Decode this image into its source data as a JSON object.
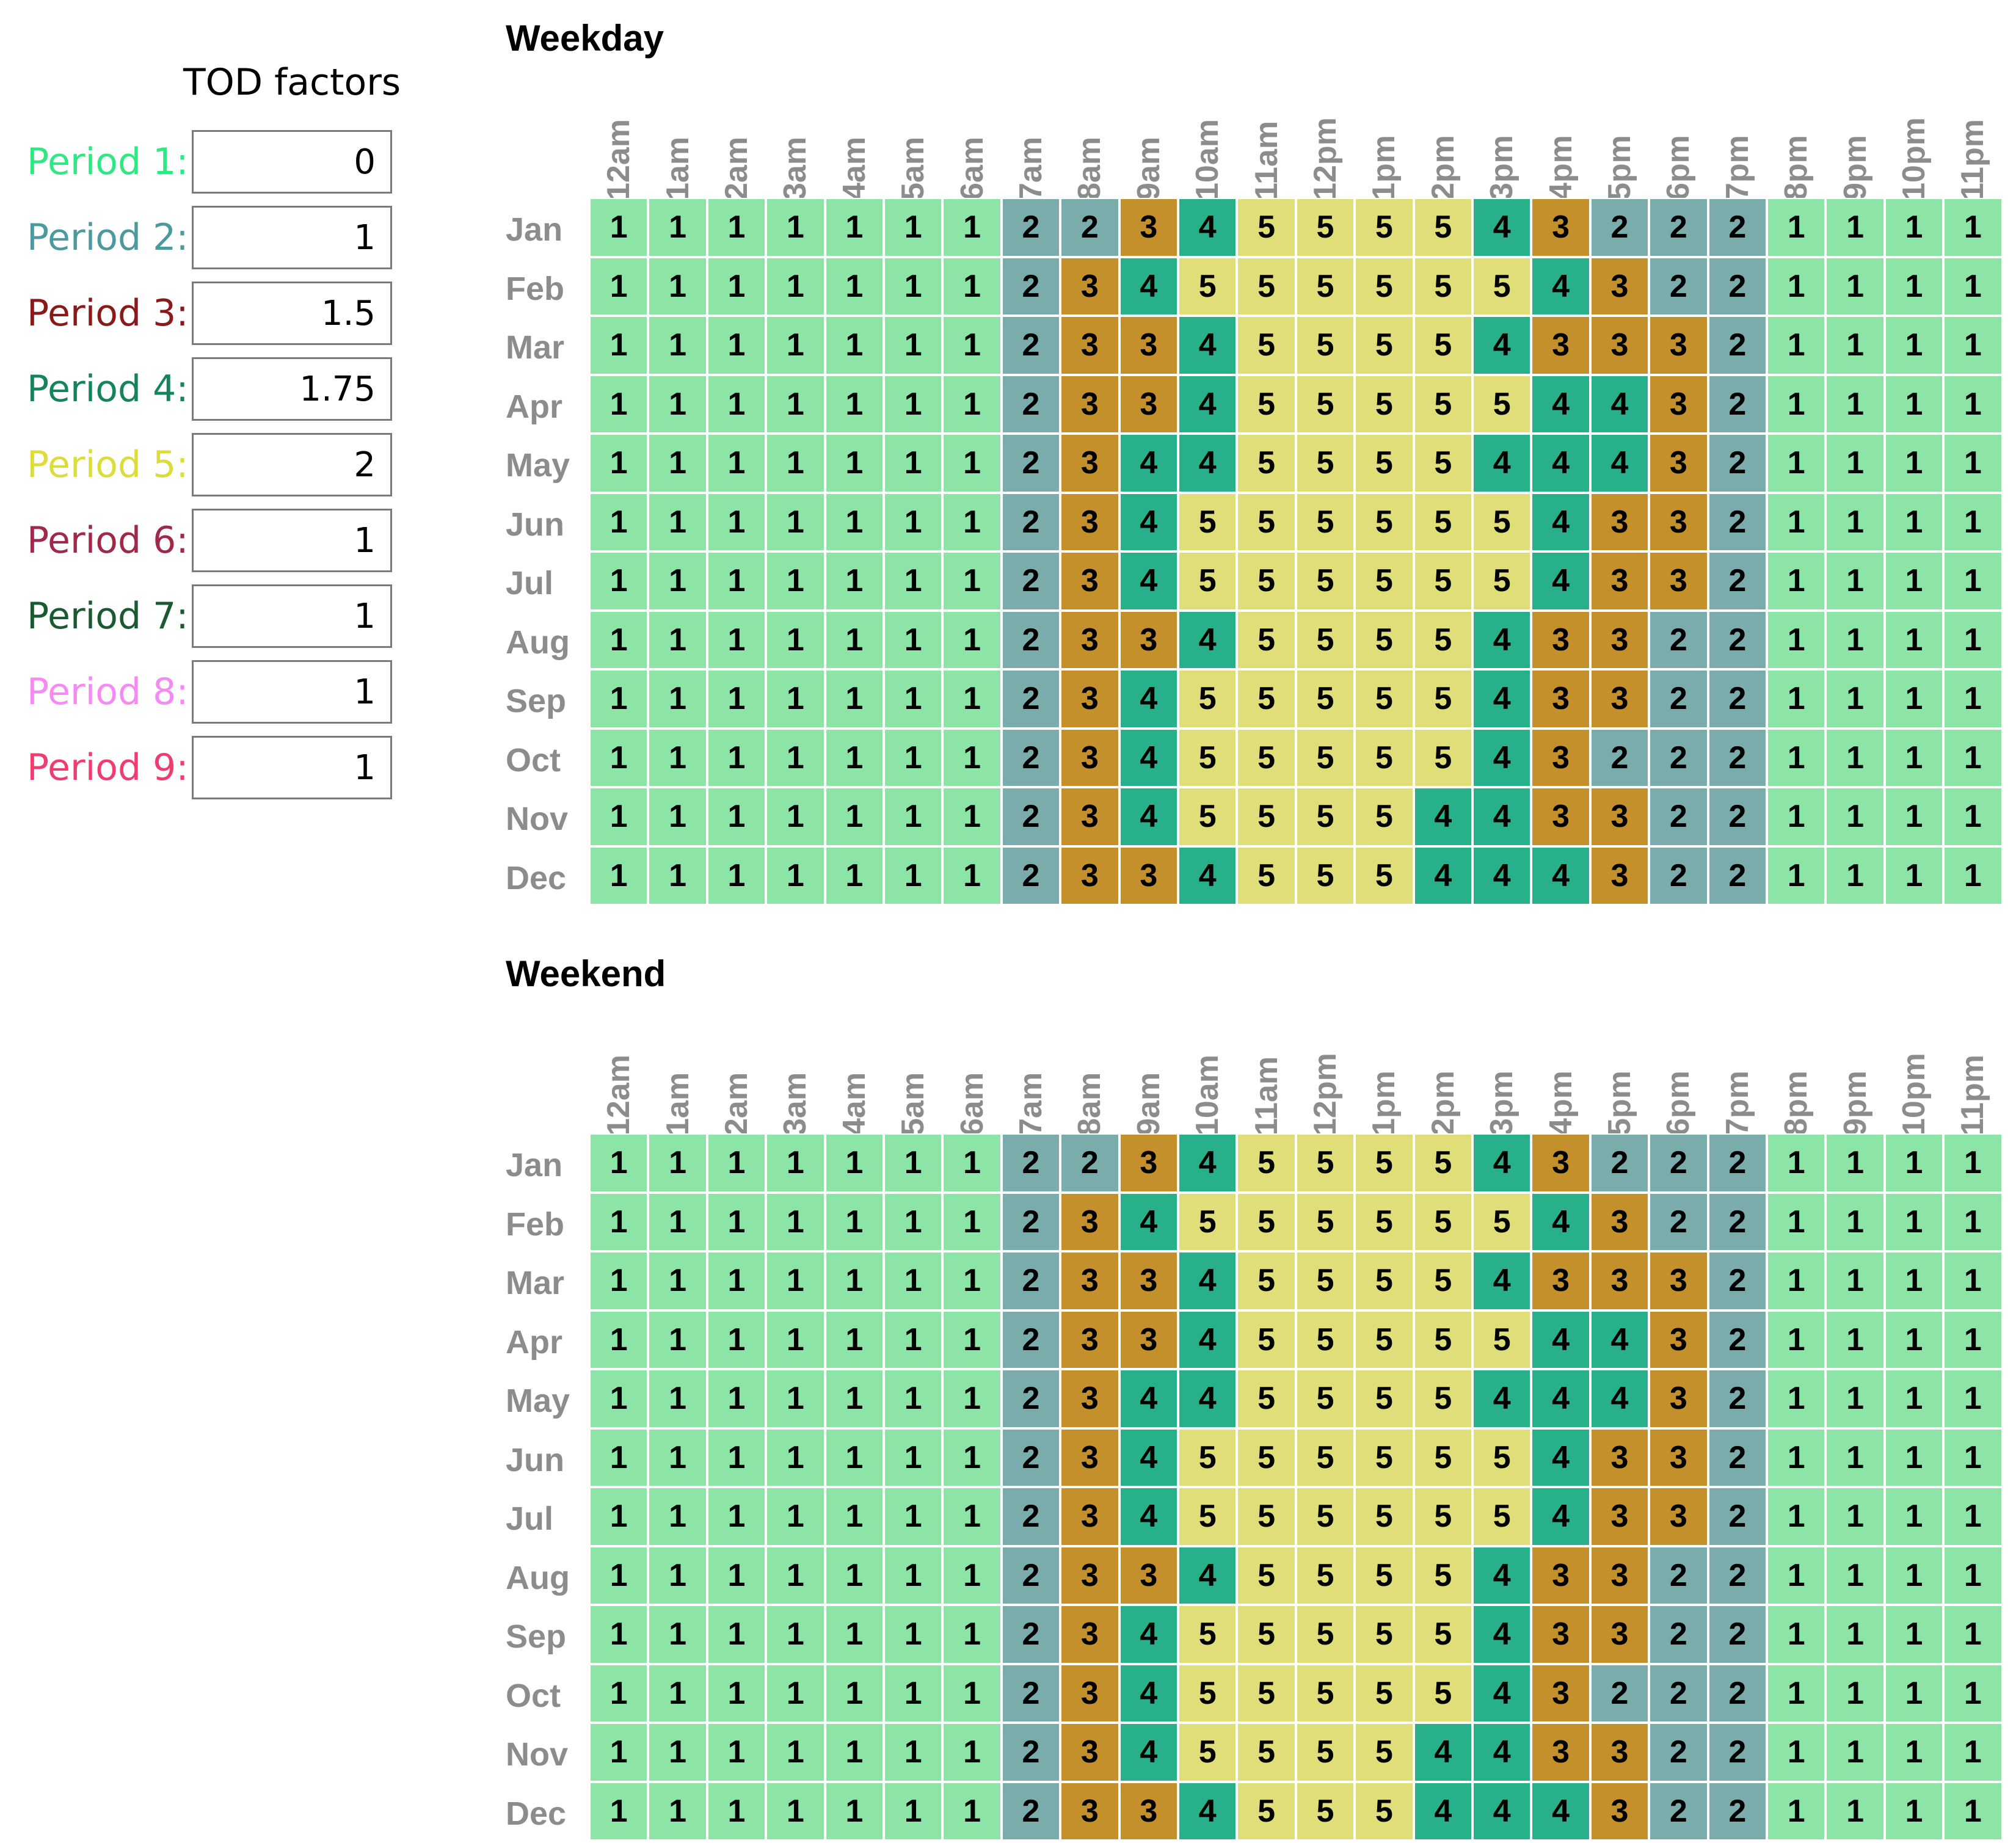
{
  "tod_panel": {
    "title": "TOD factors",
    "periods": [
      {
        "label": "Period 1:",
        "value": "0",
        "color": "#2ee882"
      },
      {
        "label": "Period 2:",
        "value": "1",
        "color": "#4c9aa0"
      },
      {
        "label": "Period 3:",
        "value": "1.5",
        "color": "#8a1a1a"
      },
      {
        "label": "Period 4:",
        "value": "1.75",
        "color": "#14855a"
      },
      {
        "label": "Period 5:",
        "value": "2",
        "color": "#dedc38"
      },
      {
        "label": "Period 6:",
        "value": "1",
        "color": "#a02848"
      },
      {
        "label": "Period 7:",
        "value": "1",
        "color": "#1a5a30"
      },
      {
        "label": "Period 8:",
        "value": "1",
        "color": "#f58af5"
      },
      {
        "label": "Period 9:",
        "value": "1",
        "color": "#f03c6e"
      }
    ]
  },
  "period_cell_colors": {
    "1": "#8de4a7",
    "2": "#7aacab",
    "3": "#c3902b",
    "4": "#27b08a",
    "5": "#dfde78"
  },
  "hours": [
    "12am",
    "1am",
    "2am",
    "3am",
    "4am",
    "5am",
    "6am",
    "7am",
    "8am",
    "9am",
    "10am",
    "11am",
    "12pm",
    "1pm",
    "2pm",
    "3pm",
    "4pm",
    "5pm",
    "6pm",
    "7pm",
    "8pm",
    "9pm",
    "10pm",
    "11pm"
  ],
  "months": [
    "Jan",
    "Feb",
    "Mar",
    "Apr",
    "May",
    "Jun",
    "Jul",
    "Aug",
    "Sep",
    "Oct",
    "Nov",
    "Dec"
  ],
  "weekday": {
    "title": "Weekday",
    "schedule": [
      [
        1,
        1,
        1,
        1,
        1,
        1,
        1,
        2,
        2,
        3,
        4,
        5,
        5,
        5,
        5,
        4,
        3,
        2,
        2,
        2,
        1,
        1,
        1,
        1
      ],
      [
        1,
        1,
        1,
        1,
        1,
        1,
        1,
        2,
        3,
        4,
        5,
        5,
        5,
        5,
        5,
        5,
        4,
        3,
        2,
        2,
        1,
        1,
        1,
        1
      ],
      [
        1,
        1,
        1,
        1,
        1,
        1,
        1,
        2,
        3,
        3,
        4,
        5,
        5,
        5,
        5,
        4,
        3,
        3,
        3,
        2,
        1,
        1,
        1,
        1
      ],
      [
        1,
        1,
        1,
        1,
        1,
        1,
        1,
        2,
        3,
        3,
        4,
        5,
        5,
        5,
        5,
        5,
        4,
        4,
        3,
        2,
        1,
        1,
        1,
        1
      ],
      [
        1,
        1,
        1,
        1,
        1,
        1,
        1,
        2,
        3,
        4,
        4,
        5,
        5,
        5,
        5,
        4,
        4,
        4,
        3,
        2,
        1,
        1,
        1,
        1
      ],
      [
        1,
        1,
        1,
        1,
        1,
        1,
        1,
        2,
        3,
        4,
        5,
        5,
        5,
        5,
        5,
        5,
        4,
        3,
        3,
        2,
        1,
        1,
        1,
        1
      ],
      [
        1,
        1,
        1,
        1,
        1,
        1,
        1,
        2,
        3,
        4,
        5,
        5,
        5,
        5,
        5,
        5,
        4,
        3,
        3,
        2,
        1,
        1,
        1,
        1
      ],
      [
        1,
        1,
        1,
        1,
        1,
        1,
        1,
        2,
        3,
        3,
        4,
        5,
        5,
        5,
        5,
        4,
        3,
        3,
        2,
        2,
        1,
        1,
        1,
        1
      ],
      [
        1,
        1,
        1,
        1,
        1,
        1,
        1,
        2,
        3,
        4,
        5,
        5,
        5,
        5,
        5,
        4,
        3,
        3,
        2,
        2,
        1,
        1,
        1,
        1
      ],
      [
        1,
        1,
        1,
        1,
        1,
        1,
        1,
        2,
        3,
        4,
        5,
        5,
        5,
        5,
        5,
        4,
        3,
        2,
        2,
        2,
        1,
        1,
        1,
        1
      ],
      [
        1,
        1,
        1,
        1,
        1,
        1,
        1,
        2,
        3,
        4,
        5,
        5,
        5,
        5,
        4,
        4,
        3,
        3,
        2,
        2,
        1,
        1,
        1,
        1
      ],
      [
        1,
        1,
        1,
        1,
        1,
        1,
        1,
        2,
        3,
        3,
        4,
        5,
        5,
        5,
        4,
        4,
        4,
        3,
        2,
        2,
        1,
        1,
        1,
        1
      ]
    ]
  },
  "weekend": {
    "title": "Weekend",
    "schedule": [
      [
        1,
        1,
        1,
        1,
        1,
        1,
        1,
        2,
        2,
        3,
        4,
        5,
        5,
        5,
        5,
        4,
        3,
        2,
        2,
        2,
        1,
        1,
        1,
        1
      ],
      [
        1,
        1,
        1,
        1,
        1,
        1,
        1,
        2,
        3,
        4,
        5,
        5,
        5,
        5,
        5,
        5,
        4,
        3,
        2,
        2,
        1,
        1,
        1,
        1
      ],
      [
        1,
        1,
        1,
        1,
        1,
        1,
        1,
        2,
        3,
        3,
        4,
        5,
        5,
        5,
        5,
        4,
        3,
        3,
        3,
        2,
        1,
        1,
        1,
        1
      ],
      [
        1,
        1,
        1,
        1,
        1,
        1,
        1,
        2,
        3,
        3,
        4,
        5,
        5,
        5,
        5,
        5,
        4,
        4,
        3,
        2,
        1,
        1,
        1,
        1
      ],
      [
        1,
        1,
        1,
        1,
        1,
        1,
        1,
        2,
        3,
        4,
        4,
        5,
        5,
        5,
        5,
        4,
        4,
        4,
        3,
        2,
        1,
        1,
        1,
        1
      ],
      [
        1,
        1,
        1,
        1,
        1,
        1,
        1,
        2,
        3,
        4,
        5,
        5,
        5,
        5,
        5,
        5,
        4,
        3,
        3,
        2,
        1,
        1,
        1,
        1
      ],
      [
        1,
        1,
        1,
        1,
        1,
        1,
        1,
        2,
        3,
        4,
        5,
        5,
        5,
        5,
        5,
        5,
        4,
        3,
        3,
        2,
        1,
        1,
        1,
        1
      ],
      [
        1,
        1,
        1,
        1,
        1,
        1,
        1,
        2,
        3,
        3,
        4,
        5,
        5,
        5,
        5,
        4,
        3,
        3,
        2,
        2,
        1,
        1,
        1,
        1
      ],
      [
        1,
        1,
        1,
        1,
        1,
        1,
        1,
        2,
        3,
        4,
        5,
        5,
        5,
        5,
        5,
        4,
        3,
        3,
        2,
        2,
        1,
        1,
        1,
        1
      ],
      [
        1,
        1,
        1,
        1,
        1,
        1,
        1,
        2,
        3,
        4,
        5,
        5,
        5,
        5,
        5,
        4,
        3,
        2,
        2,
        2,
        1,
        1,
        1,
        1
      ],
      [
        1,
        1,
        1,
        1,
        1,
        1,
        1,
        2,
        3,
        4,
        5,
        5,
        5,
        5,
        4,
        4,
        3,
        3,
        2,
        2,
        1,
        1,
        1,
        1
      ],
      [
        1,
        1,
        1,
        1,
        1,
        1,
        1,
        2,
        3,
        3,
        4,
        5,
        5,
        5,
        4,
        4,
        4,
        3,
        2,
        2,
        1,
        1,
        1,
        1
      ]
    ]
  }
}
